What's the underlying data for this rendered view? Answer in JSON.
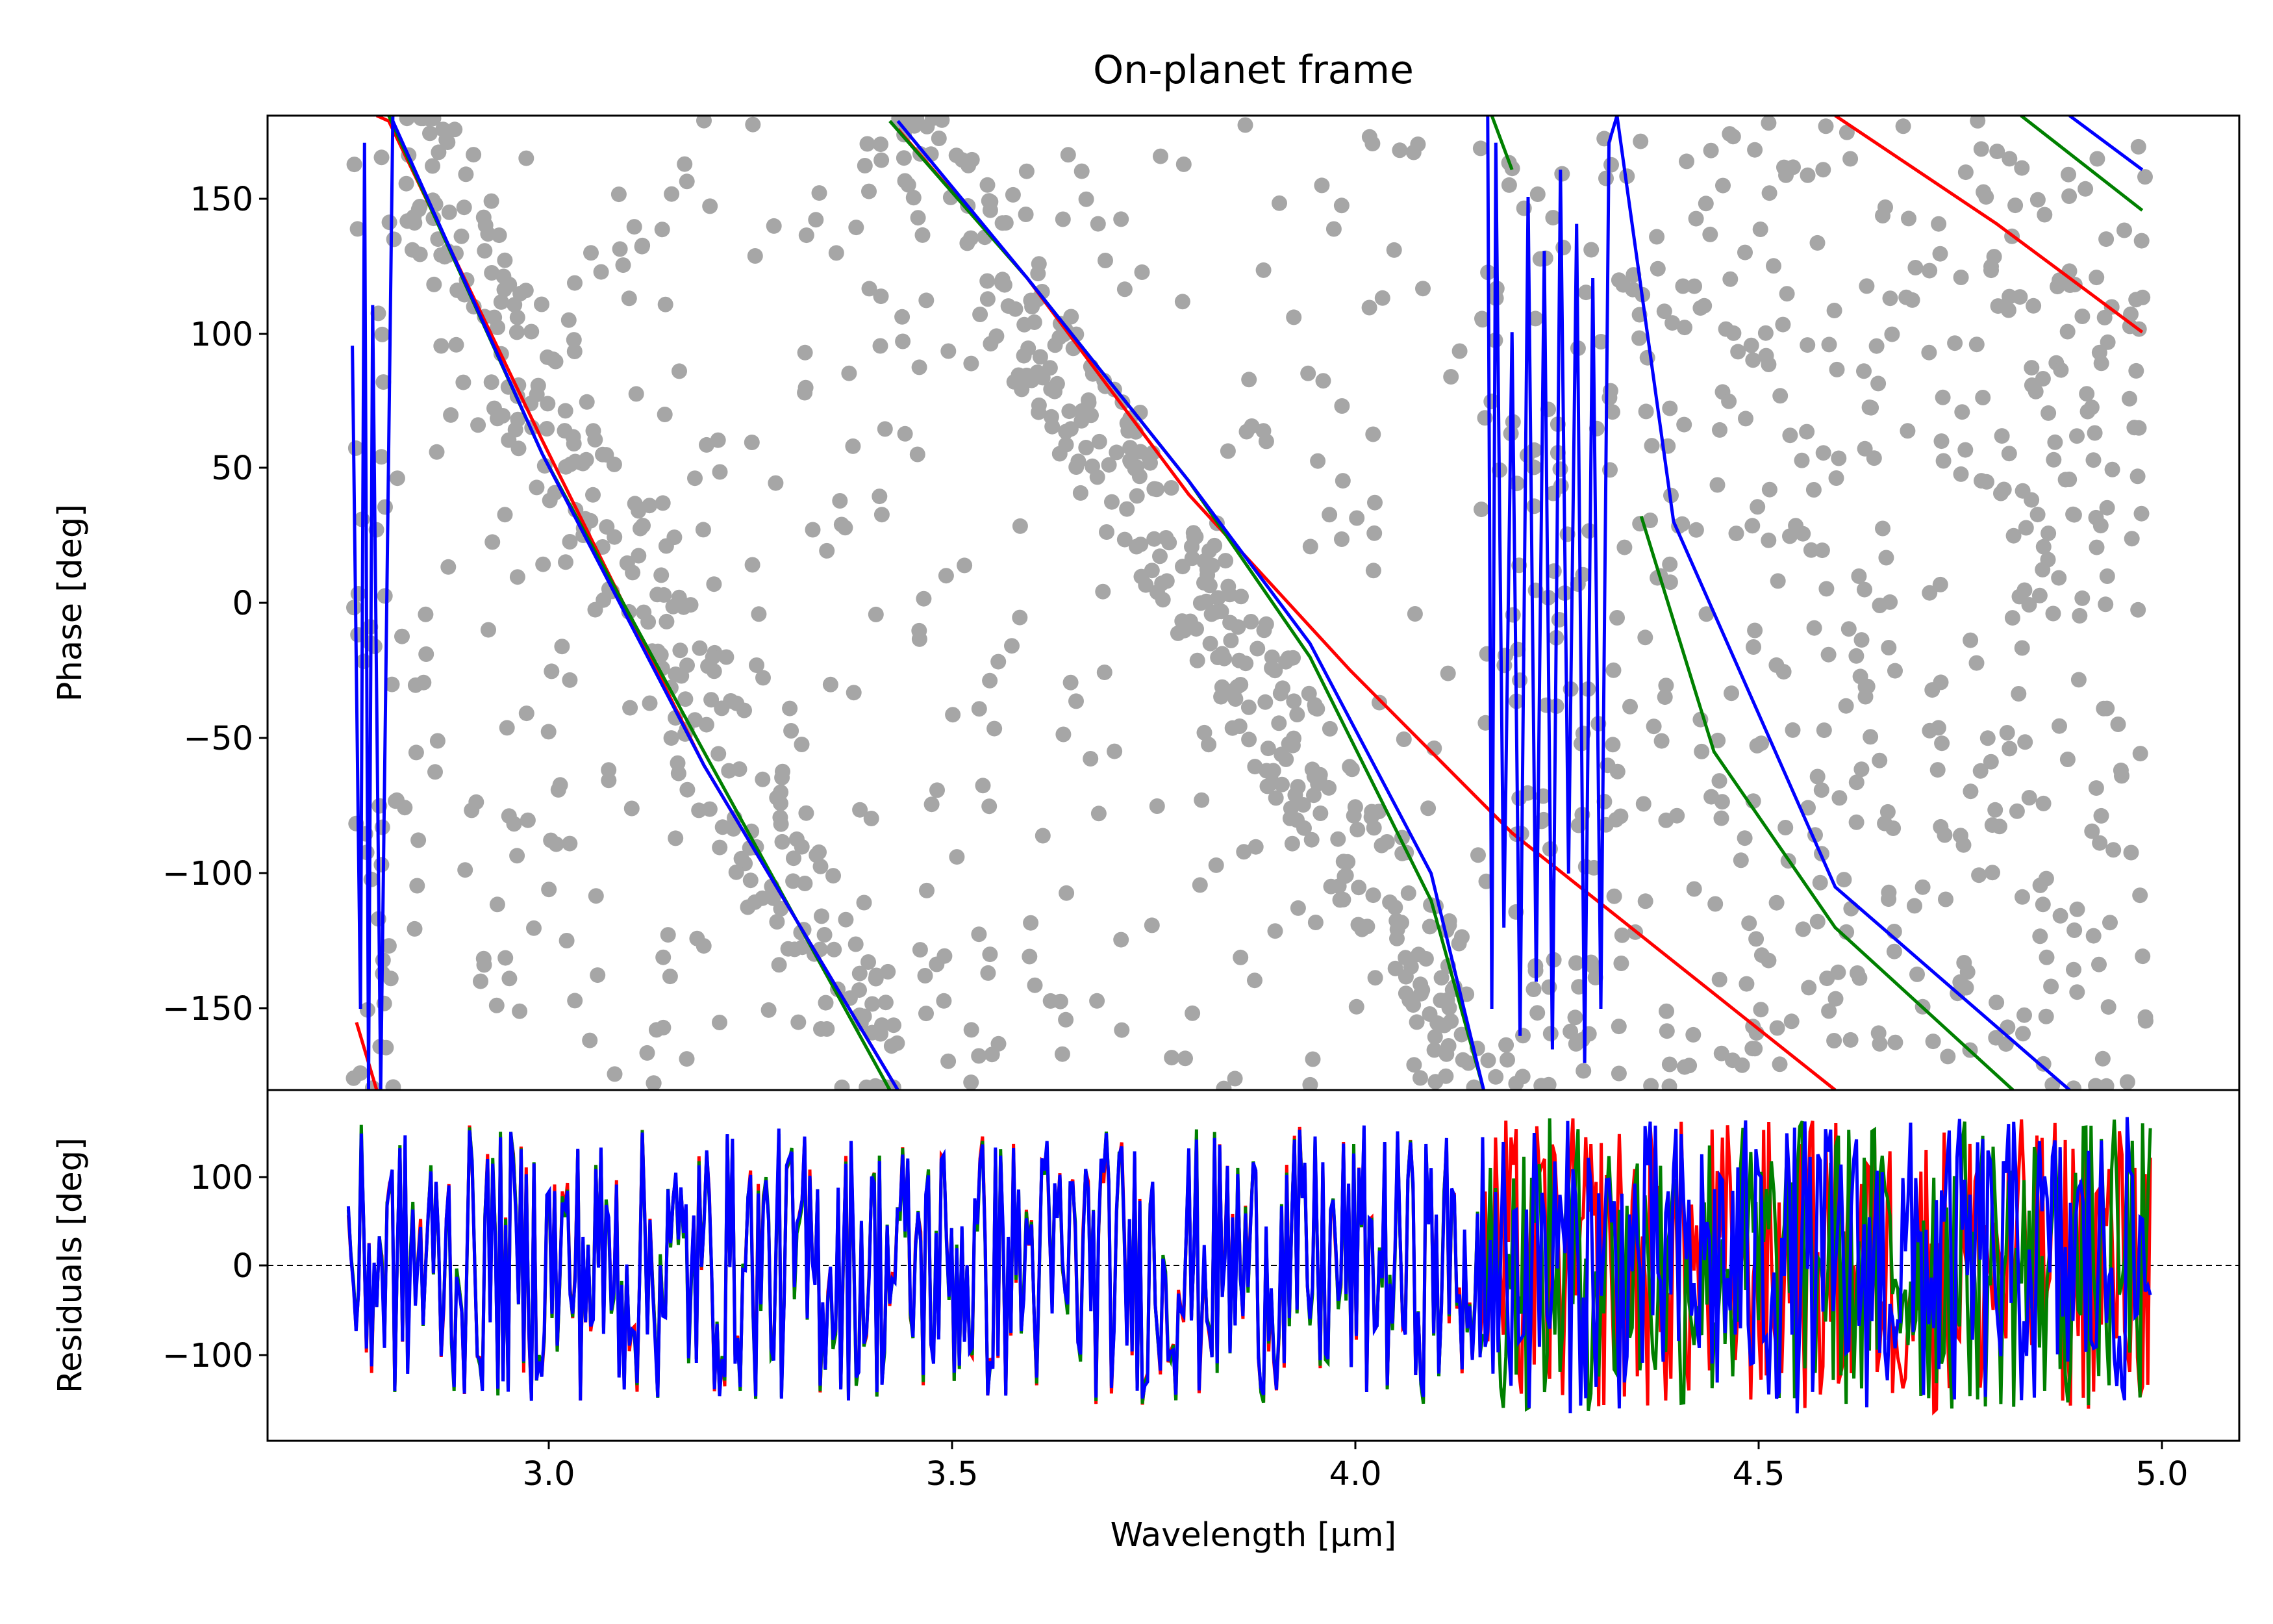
{
  "chart_data": [
    {
      "type": "scatter",
      "title": "On-planet frame",
      "xlabel": "",
      "ylabel": "Phase [deg]",
      "xlim": [
        2.66,
        5.1
      ],
      "ylim": [
        -180,
        180
      ],
      "yticks": [
        150,
        100,
        50,
        0,
        -50,
        -100,
        -150
      ],
      "ytick_labels": [
        "150",
        "100",
        "50",
        "0",
        "−50",
        "−100",
        "−150"
      ],
      "grid": false,
      "scatter_color": "#a6a6a6",
      "series": [
        {
          "color": "#ff0000",
          "segments": [
            {
              "x": [
                2.77,
                2.795
              ],
              "y": [
                -155,
                -180
              ]
            },
            {
              "x": [
                2.795,
                2.81,
                3.0,
                3.2,
                3.44
              ],
              "y": [
                180,
                178,
                60,
                -60,
                -180
              ]
            },
            {
              "x": [
                3.44,
                3.6,
                3.8,
                4.0,
                4.2,
                4.6
              ],
              "y": [
                175,
                120,
                40,
                -25,
                -85,
                -180
              ]
            },
            {
              "x": [
                4.6,
                4.8,
                4.98
              ],
              "y": [
                180,
                140,
                100
              ]
            }
          ]
        },
        {
          "color": "#008000",
          "segments": [
            {
              "x": [
                2.81,
                3.0,
                3.2,
                3.43
              ],
              "y": [
                180,
                55,
                -55,
                -180
              ]
            },
            {
              "x": [
                3.43,
                3.6,
                3.8,
                3.95,
                4.1,
                4.165
              ],
              "y": [
                178,
                120,
                45,
                -20,
                -110,
                -180
              ]
            },
            {
              "x": [
                4.175,
                4.2
              ],
              "y": [
                180,
                160
              ]
            },
            {
              "x": [
                4.36,
                4.45,
                4.6,
                4.82
              ],
              "y": [
                32,
                -55,
                -120,
                -180
              ]
            },
            {
              "x": [
                4.83,
                4.98
              ],
              "y": [
                180,
                145
              ]
            }
          ]
        },
        {
          "color": "#0000ff",
          "segments": [
            {
              "x": [
                2.765,
                2.775,
                2.78,
                2.785,
                2.79,
                2.8,
                2.815
              ],
              "y": [
                95,
                -150,
                170,
                -180,
                110,
                -180,
                180
              ]
            },
            {
              "x": [
                2.815,
                3.0,
                3.2,
                3.44
              ],
              "y": [
                178,
                55,
                -60,
                -180
              ]
            },
            {
              "x": [
                3.44,
                3.6,
                3.8,
                3.95,
                4.1,
                4.165
              ],
              "y": [
                178,
                120,
                45,
                -15,
                -100,
                -180
              ]
            },
            {
              "x": [
                4.17,
                4.175,
                4.18,
                4.19,
                4.2,
                4.21,
                4.22,
                4.23,
                4.24,
                4.25,
                4.26,
                4.27,
                4.28,
                4.29,
                4.3,
                4.31,
                4.32,
                4.33
              ],
              "y": [
                180,
                -150,
                170,
                -120,
                100,
                -160,
                150,
                -140,
                130,
                -165,
                160,
                -100,
                140,
                -170,
                120,
                -150,
                170,
                180
              ]
            },
            {
              "x": [
                4.33,
                4.4,
                4.6,
                4.89
              ],
              "y": [
                180,
                30,
                -105,
                -180
              ]
            },
            {
              "x": [
                4.89,
                4.98
              ],
              "y": [
                180,
                160
              ]
            }
          ]
        }
      ]
    },
    {
      "type": "line",
      "title": "",
      "xlabel": "Wavelength [µm]",
      "ylabel": "Residuals [deg]",
      "xlim": [
        2.66,
        5.1
      ],
      "ylim": [
        -195,
        195
      ],
      "xticks": [
        3.0,
        3.5,
        4.0,
        4.5,
        5.0
      ],
      "xtick_labels": [
        "3.0",
        "3.5",
        "4.0",
        "4.5",
        "5.0"
      ],
      "yticks": [
        100,
        0,
        -100
      ],
      "ytick_labels": [
        "100",
        "0",
        "−100"
      ],
      "zero_line": "dashed",
      "x_range": [
        2.76,
        4.99
      ],
      "series_colors": [
        "#ff0000",
        "#008000",
        "#0000ff"
      ]
    }
  ],
  "main_plot": {
    "title": "On-planet frame",
    "ylabel": "Phase [deg]",
    "ytick_labels": [
      "150",
      "100",
      "50",
      "0",
      "−50",
      "−100",
      "−150"
    ]
  },
  "residual_plot": {
    "ylabel": "Residuals [deg]",
    "xlabel": "Wavelength [µm]",
    "xtick_labels": [
      "3.0",
      "3.5",
      "4.0",
      "4.5",
      "5.0"
    ],
    "ytick_labels": [
      "100",
      "0",
      "−100"
    ]
  }
}
